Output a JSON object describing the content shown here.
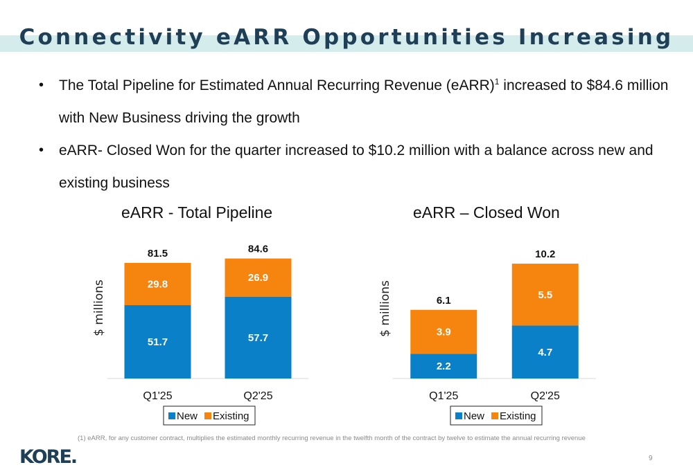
{
  "slide": {
    "title": "Connectivity eARR Opportunities Increasing",
    "band_color": "#d5ecec",
    "title_color": "#1e3f55",
    "bullets": [
      {
        "text": "The Total Pipeline for Estimated Annual Recurring Revenue (eARR)",
        "sup": "1",
        "text_after": " increased to $84.6 million with New Business driving the growth"
      },
      {
        "text": "eARR- Closed Won for the quarter increased to $10.2 million with a balance across new and existing business",
        "sup": "",
        "text_after": ""
      }
    ],
    "footnote": "(1) eARR, for any customer contract, multiplies the estimated monthly recurring revenue in the twelfth month of the contract by twelve to estimate the annual recurring revenue",
    "logo_text": "KORE.",
    "page_number": "9"
  },
  "colors": {
    "new": "#0a80c9",
    "existing": "#f5850f"
  },
  "chart_data": [
    {
      "type": "bar",
      "stacked": true,
      "title": "eARR - Total Pipeline",
      "ylabel": "$ millions",
      "categories": [
        "Q1'25",
        "Q2'25"
      ],
      "series": [
        {
          "name": "New",
          "values": [
            51.7,
            57.7
          ]
        },
        {
          "name": "Existing",
          "values": [
            29.8,
            26.9
          ]
        }
      ],
      "totals": [
        "81.5",
        "84.6"
      ],
      "ylim": [
        0,
        100
      ],
      "grid": false,
      "legend": "bottom"
    },
    {
      "type": "bar",
      "stacked": true,
      "title": "eARR – Closed Won",
      "ylabel": "$ millions",
      "categories": [
        "Q1'25",
        "Q2'25"
      ],
      "series": [
        {
          "name": "New",
          "values": [
            2.2,
            4.7
          ]
        },
        {
          "name": "Existing",
          "values": [
            3.9,
            5.5
          ]
        }
      ],
      "totals": [
        "6.1",
        "10.2"
      ],
      "ylim": [
        0,
        12.6
      ],
      "grid": false,
      "legend": "bottom"
    }
  ]
}
